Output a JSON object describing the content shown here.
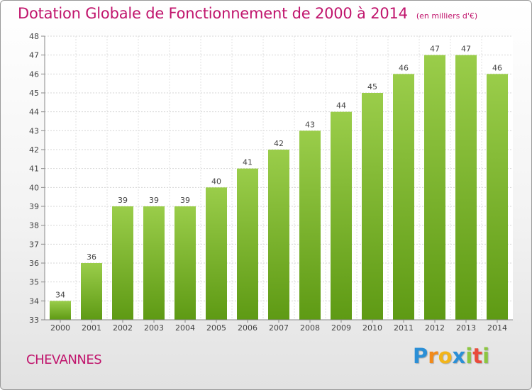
{
  "chart_data": {
    "type": "bar",
    "title": "Dotation Globale de Fonctionnement de 2000 à 2014",
    "subtitle": "(en milliers d'€)",
    "categories": [
      "2000",
      "2001",
      "2002",
      "2003",
      "2004",
      "2005",
      "2006",
      "2007",
      "2008",
      "2009",
      "2010",
      "2011",
      "2012",
      "2013",
      "2014"
    ],
    "values": [
      34,
      36,
      39,
      39,
      39,
      40,
      41,
      42,
      43,
      44,
      45,
      46,
      47,
      47,
      46
    ],
    "ylim": [
      33,
      48
    ],
    "yticks": [
      33,
      34,
      35,
      36,
      37,
      38,
      39,
      40,
      41,
      42,
      43,
      44,
      45,
      46,
      47,
      48
    ],
    "xlabel": "",
    "ylabel": "",
    "grid": true,
    "bar_color_top": "#9acd4a",
    "bar_color_bottom": "#5e9a14"
  },
  "commune": "CHEVANNES",
  "brand": {
    "letters": [
      "P",
      "r",
      "o",
      "x",
      "i",
      "t",
      "i"
    ],
    "colors": [
      "#2b8fd6",
      "#f28a1a",
      "#f2b51a",
      "#2b8fd6",
      "#8cc63f",
      "#e94b3c",
      "#8cc63f"
    ]
  }
}
